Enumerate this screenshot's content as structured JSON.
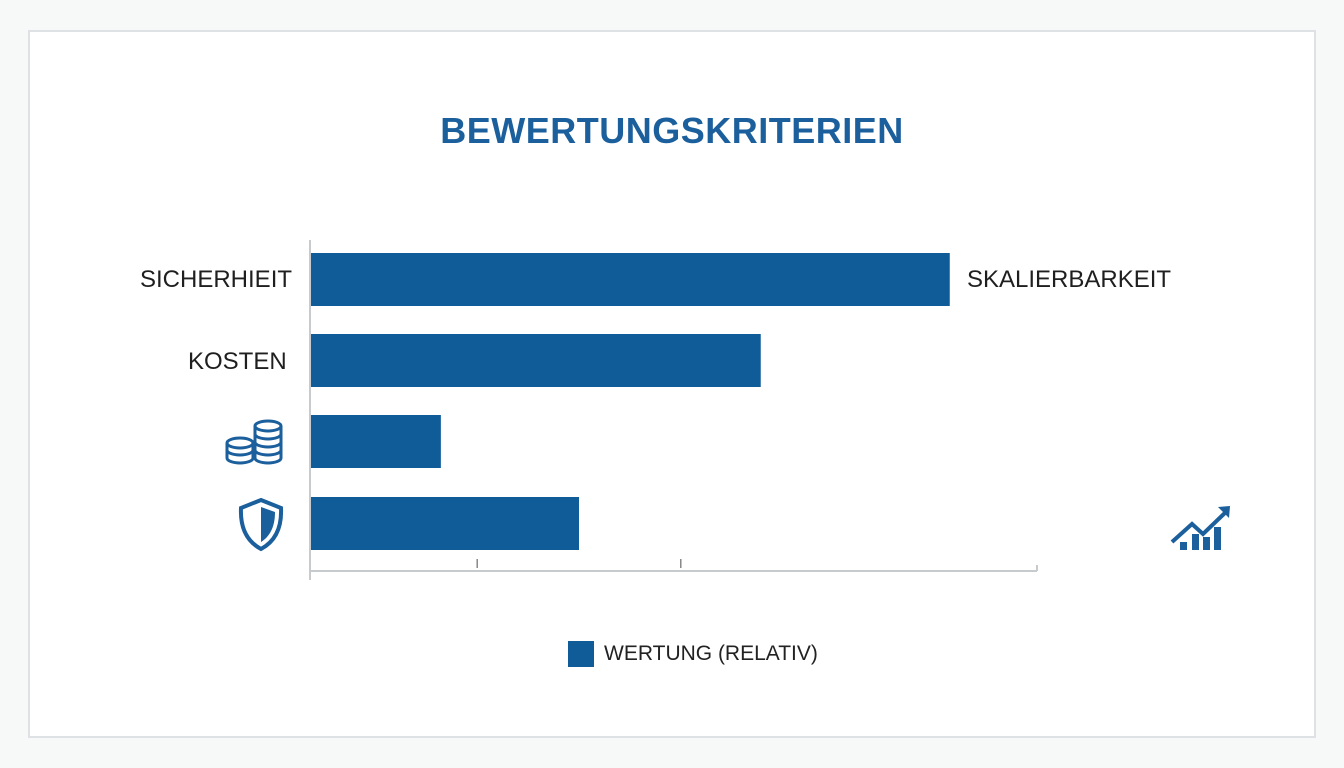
{
  "colors": {
    "bar": "#0f5c99",
    "title": "#1b5f9c",
    "axis": "#c8cbcd"
  },
  "chart_data": {
    "type": "bar",
    "orientation": "horizontal",
    "title": "BEWERTUNGSKRITERIEN",
    "categories": [
      "SICHERHIEIT",
      "KOSTEN",
      "coins-icon",
      "shield-icon"
    ],
    "values": [
      88,
      62,
      18,
      37
    ],
    "xlim": [
      0,
      100
    ],
    "ticks": [
      23,
      51
    ],
    "grid": false,
    "legend": {
      "position": "bottom",
      "entries": [
        "WERTUNG (RELATIV)"
      ]
    },
    "annotations": [
      "SKALIERBARKEIT"
    ],
    "annotation_icons": [
      "growth-chart-icon"
    ]
  }
}
